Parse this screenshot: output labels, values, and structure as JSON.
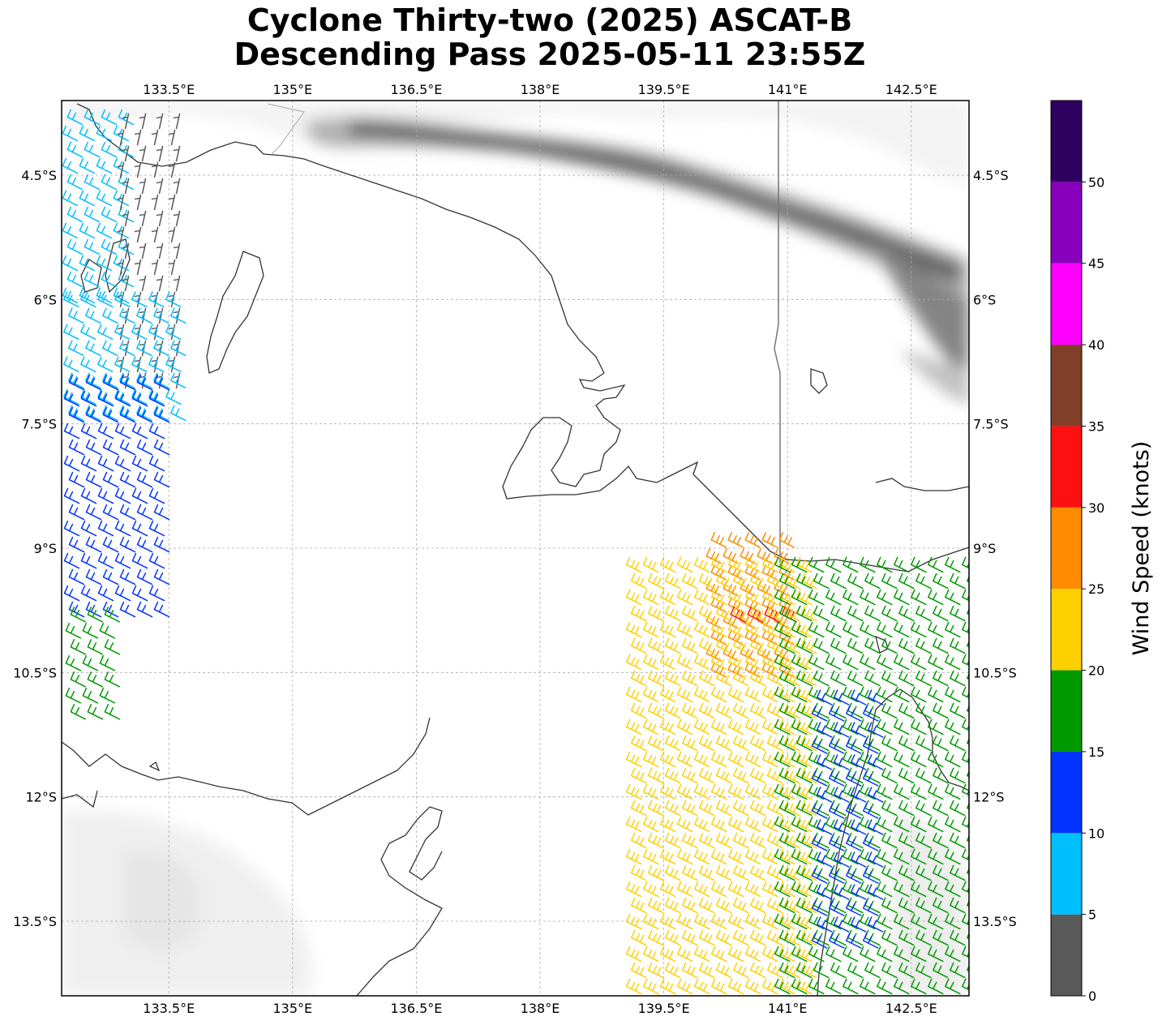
{
  "title": {
    "line1": "Cyclone Thirty-two (2025) ASCAT-B",
    "line2": "Descending Pass 2025-05-11 23:55Z"
  },
  "map": {
    "lon_range": [
      132.2,
      143.2
    ],
    "lat_range": [
      -14.4,
      -3.6
    ],
    "gridlines": "dashed",
    "lon_ticks": [
      {
        "value": 133.5,
        "label": "133.5°E"
      },
      {
        "value": 135.0,
        "label": "135°E"
      },
      {
        "value": 136.5,
        "label": "136.5°E"
      },
      {
        "value": 138.0,
        "label": "138°E"
      },
      {
        "value": 139.5,
        "label": "139.5°E"
      },
      {
        "value": 141.0,
        "label": "141°E"
      },
      {
        "value": 142.5,
        "label": "142.5°E"
      }
    ],
    "lat_ticks": [
      {
        "value": -4.5,
        "label": "4.5°S"
      },
      {
        "value": -6.0,
        "label": "6°S"
      },
      {
        "value": -7.5,
        "label": "7.5°S"
      },
      {
        "value": -9.0,
        "label": "9°S"
      },
      {
        "value": -10.5,
        "label": "10.5°S"
      },
      {
        "value": -12.0,
        "label": "12°S"
      },
      {
        "value": -13.5,
        "label": "13.5°S"
      }
    ],
    "background": "grayscale terrain (New Guinea highlands, northern Australia)"
  },
  "colorbar": {
    "label": "Wind Speed (knots)",
    "bins": [
      {
        "from": 0,
        "to": 5,
        "color": "#595959"
      },
      {
        "from": 5,
        "to": 10,
        "color": "#00bfff"
      },
      {
        "from": 10,
        "to": 15,
        "color": "#0033ff"
      },
      {
        "from": 15,
        "to": 20,
        "color": "#009a00"
      },
      {
        "from": 20,
        "to": 25,
        "color": "#ffd000"
      },
      {
        "from": 25,
        "to": 30,
        "color": "#ff8c00"
      },
      {
        "from": 30,
        "to": 35,
        "color": "#ff1010"
      },
      {
        "from": 35,
        "to": 40,
        "color": "#7f3f28"
      },
      {
        "from": 40,
        "to": 45,
        "color": "#ff00ff"
      },
      {
        "from": 45,
        "to": 50,
        "color": "#8800bb"
      },
      {
        "from": 50,
        "to": 55,
        "color": "#2e005f"
      }
    ],
    "tick_labels": [
      "0",
      "5",
      "10",
      "15",
      "20",
      "25",
      "30",
      "35",
      "40",
      "45",
      "50"
    ]
  },
  "wind_swaths": [
    {
      "name": "west-swath",
      "segments": [
        {
          "lat_from": -3.8,
          "lat_to": -6.0,
          "lon_from": 132.2,
          "lon_to": 132.9,
          "speed_class": "5-10"
        },
        {
          "lat_from": -3.8,
          "lat_to": -7.0,
          "lon_from": 132.9,
          "lon_to": 133.7,
          "speed_class": "0-5"
        },
        {
          "lat_from": -6.0,
          "lat_to": -7.5,
          "lon_from": 132.2,
          "lon_to": 133.6,
          "speed_class": "5-10"
        },
        {
          "lat_from": -7.0,
          "lat_to": -9.8,
          "lon_from": 132.2,
          "lon_to": 133.4,
          "speed_class": "10-15"
        },
        {
          "lat_from": -9.8,
          "lat_to": -11.0,
          "lon_from": 132.2,
          "lon_to": 132.8,
          "speed_class": "15-20"
        }
      ]
    },
    {
      "name": "east-swath",
      "segments": [
        {
          "lat_from": -8.9,
          "lat_to": -10.6,
          "lon_from": 140.0,
          "lon_to": 141.0,
          "speed_class": "25-30"
        },
        {
          "lat_from": -9.8,
          "lat_to": -9.9,
          "lon_from": 140.2,
          "lon_to": 140.9,
          "speed_class": "30-35"
        },
        {
          "lat_from": -9.2,
          "lat_to": -14.4,
          "lon_from": 139.0,
          "lon_to": 141.2,
          "speed_class": "20-25"
        },
        {
          "lat_from": -9.2,
          "lat_to": -14.4,
          "lon_from": 140.8,
          "lon_to": 143.2,
          "speed_class": "15-20"
        },
        {
          "lat_from": -10.8,
          "lat_to": -13.8,
          "lon_from": 141.3,
          "lon_to": 142.0,
          "speed_class": "10-15"
        }
      ]
    }
  ]
}
